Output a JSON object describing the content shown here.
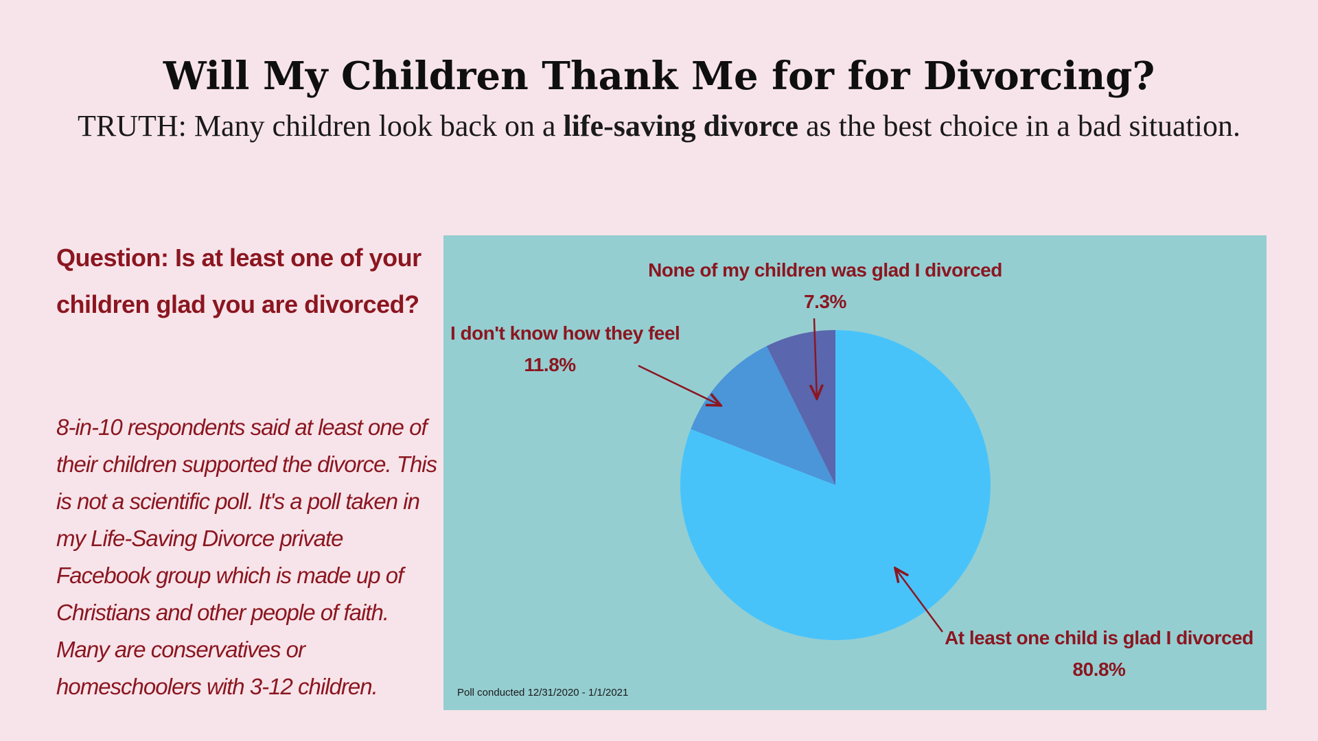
{
  "header": {
    "title": "Will My Children Thank Me for for Divorcing?",
    "subtitle_before": "TRUTH: Many children look back on a ",
    "subtitle_bold": "life-saving divorce",
    "subtitle_after": " as the best choice in a bad situation."
  },
  "sidebar": {
    "question": "Question: Is at least one of your children glad you are divorced?",
    "description": "8-in-10 respondents said at least one of their children supported the divorce. This is not a scientific poll. It's a poll taken in my Life-Saving Divorce private Facebook group which is made up of Christians and other people of faith. Many are conservatives or homeschoolers with 3-12 children."
  },
  "chart_data": {
    "type": "pie",
    "title": "",
    "slices": [
      {
        "label": "At least one child is glad I divorced",
        "value": 80.8,
        "value_label": "80.8%",
        "color": "#48c3fa"
      },
      {
        "label": "I don't know how they feel",
        "value": 11.8,
        "value_label": "11.8%",
        "color": "#4b95d9"
      },
      {
        "label": "None of my children was glad I divorced",
        "value": 7.3,
        "value_label": "7.3%",
        "color": "#5a66ad"
      }
    ],
    "start_angle": "12 o'clock",
    "direction": "clockwise",
    "legend": "none",
    "label_color": "#8b1620",
    "footnote": "Poll conducted 12/31/2020 - 1/1/2021"
  }
}
